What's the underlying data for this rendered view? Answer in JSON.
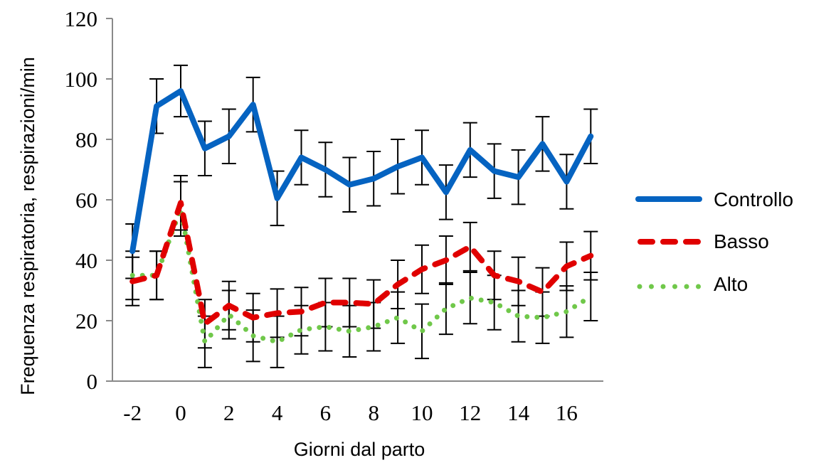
{
  "chart_data": {
    "type": "line",
    "title": "",
    "xlabel": "Giorni dal parto",
    "ylabel": "Frequenza respiratoria, respirazioni/min",
    "ylim": [
      0,
      120
    ],
    "yticks": [
      0,
      20,
      40,
      60,
      80,
      100,
      120
    ],
    "xlim": [
      -2.5,
      17.5
    ],
    "xticks": [
      -2,
      0,
      2,
      4,
      6,
      8,
      10,
      12,
      14,
      16
    ],
    "grid": false,
    "legend_position": "right",
    "error_bars": true,
    "x": [
      -2,
      -1,
      0,
      1,
      2,
      3,
      4,
      5,
      6,
      7,
      8,
      9,
      10,
      11,
      12,
      13,
      14,
      15,
      16,
      17
    ],
    "series": [
      {
        "name": "Controllo",
        "color": "#0563C1",
        "style": "solid",
        "values": [
          43,
          91,
          96,
          77,
          81,
          91.5,
          60.5,
          74,
          70,
          65,
          67,
          71,
          74,
          62.5,
          76.5,
          69.5,
          67.5,
          78.5,
          66,
          81
        ],
        "error": [
          9,
          9,
          8.5,
          9,
          9,
          9,
          9,
          9,
          9,
          9,
          9,
          9,
          9,
          9,
          9,
          9,
          9,
          9,
          9,
          9
        ]
      },
      {
        "name": "Basso",
        "color": "#E00000",
        "style": "dashed",
        "values": [
          33,
          35,
          59,
          19,
          25,
          21,
          22.5,
          23,
          26,
          26,
          25.5,
          32,
          37,
          40,
          44.5,
          35,
          33,
          29.5,
          38,
          41.5
        ],
        "error": [
          8,
          8,
          9,
          8,
          8,
          8,
          8,
          8,
          8,
          8,
          8,
          8,
          8,
          8,
          8,
          8,
          8,
          8,
          8,
          8
        ]
      },
      {
        "name": "Alto",
        "color": "#70C84A",
        "style": "dotted",
        "values": [
          35,
          35,
          57,
          13,
          22,
          15,
          13,
          17,
          18,
          16.5,
          18,
          21,
          16.5,
          24,
          27.5,
          26,
          21.5,
          21,
          23,
          28
        ],
        "error": [
          8,
          8,
          9,
          8.5,
          8,
          8.5,
          8.5,
          8,
          8,
          8.5,
          8,
          8.5,
          9,
          8.5,
          8.5,
          9,
          8.5,
          8.5,
          8.5,
          8
        ]
      }
    ]
  },
  "legend": {
    "items": [
      {
        "label": "Controllo"
      },
      {
        "label": "Basso"
      },
      {
        "label": "Alto"
      }
    ]
  },
  "axes": {
    "x_label": "Giorni dal parto",
    "y_label": "Frequenza respiratoria, respirazioni/min",
    "axis_color": "#898989"
  }
}
